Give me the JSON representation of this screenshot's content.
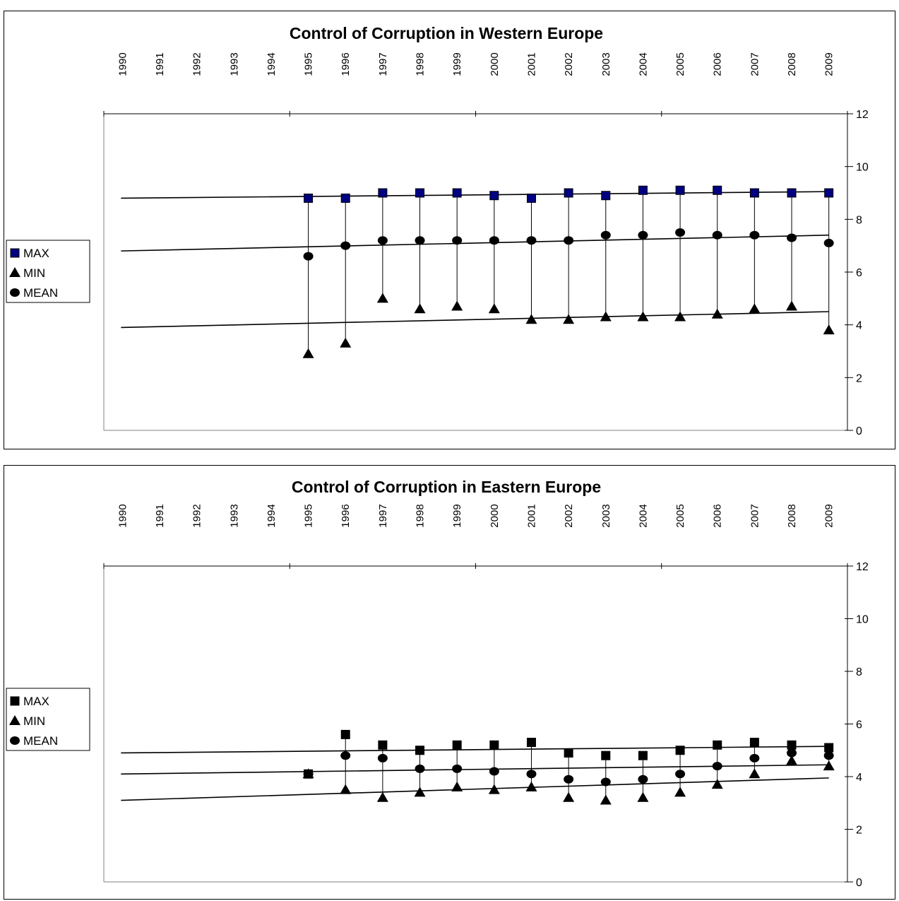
{
  "chart_data": [
    {
      "type": "scatter",
      "title": "Control of Corruption in Western Europe",
      "xlabel": "",
      "ylabel": "",
      "x_categories": [
        "1990",
        "1991",
        "1992",
        "1993",
        "1994",
        "1995",
        "1996",
        "1997",
        "1998",
        "1999",
        "2000",
        "2001",
        "2002",
        "2003",
        "2004",
        "2005",
        "2006",
        "2007",
        "2008",
        "2009"
      ],
      "ylim": [
        0,
        12
      ],
      "y_ticks": [
        "0",
        "2",
        "4",
        "6",
        "8",
        "10",
        "12"
      ],
      "grid": false,
      "legend_position": "left",
      "max_marker_color": "#000080",
      "series": [
        {
          "name": "MAX",
          "marker": "square",
          "values": [
            null,
            null,
            null,
            null,
            null,
            8.8,
            8.8,
            9.0,
            9.0,
            9.0,
            8.9,
            8.8,
            9.0,
            8.9,
            9.1,
            9.1,
            9.1,
            9.0,
            9.0,
            9.0
          ]
        },
        {
          "name": "MIN",
          "marker": "triangle",
          "values": [
            null,
            null,
            null,
            null,
            null,
            2.9,
            3.3,
            5.0,
            4.6,
            4.7,
            4.6,
            4.2,
            4.2,
            4.3,
            4.3,
            4.3,
            4.4,
            4.6,
            4.7,
            3.8
          ]
        },
        {
          "name": "MEAN",
          "marker": "circle",
          "values": [
            null,
            null,
            null,
            null,
            null,
            6.6,
            7.0,
            7.2,
            7.2,
            7.2,
            7.2,
            7.2,
            7.2,
            7.4,
            7.4,
            7.5,
            7.4,
            7.4,
            7.3,
            7.1
          ]
        }
      ],
      "trendlines": [
        {
          "series": "MAX",
          "start": 8.8,
          "end": 9.05
        },
        {
          "series": "MEAN",
          "start": 6.8,
          "end": 7.4
        },
        {
          "series": "MIN",
          "start": 3.9,
          "end": 4.5
        }
      ]
    },
    {
      "type": "scatter",
      "title": "Control of Corruption in Eastern Europe",
      "xlabel": "",
      "ylabel": "",
      "x_categories": [
        "1990",
        "1991",
        "1992",
        "1993",
        "1994",
        "1995",
        "1996",
        "1997",
        "1998",
        "1999",
        "2000",
        "2001",
        "2002",
        "2003",
        "2004",
        "2005",
        "2006",
        "2007",
        "2008",
        "2009"
      ],
      "ylim": [
        0,
        12
      ],
      "y_ticks": [
        "0",
        "2",
        "4",
        "6",
        "8",
        "10",
        "12"
      ],
      "grid": false,
      "legend_position": "left",
      "max_marker_color": "#000000",
      "series": [
        {
          "name": "MAX",
          "marker": "square",
          "values": [
            null,
            null,
            null,
            null,
            null,
            4.1,
            5.6,
            5.2,
            5.0,
            5.2,
            5.2,
            5.3,
            4.9,
            4.8,
            4.8,
            5.0,
            5.2,
            5.3,
            5.2,
            5.1
          ]
        },
        {
          "name": "MIN",
          "marker": "triangle",
          "values": [
            null,
            null,
            null,
            null,
            null,
            4.1,
            3.5,
            3.2,
            3.4,
            3.6,
            3.5,
            3.6,
            3.2,
            3.1,
            3.2,
            3.4,
            3.7,
            4.1,
            4.6,
            4.4
          ]
        },
        {
          "name": "MEAN",
          "marker": "circle",
          "values": [
            null,
            null,
            null,
            null,
            null,
            4.1,
            4.8,
            4.7,
            4.3,
            4.3,
            4.2,
            4.1,
            3.9,
            3.8,
            3.9,
            4.1,
            4.4,
            4.7,
            4.9,
            4.8
          ]
        }
      ],
      "trendlines": [
        {
          "series": "MAX",
          "start": 4.9,
          "end": 5.15
        },
        {
          "series": "MEAN",
          "start": 4.1,
          "end": 4.45
        },
        {
          "series": "MIN",
          "start": 3.1,
          "end": 3.95
        }
      ]
    }
  ]
}
